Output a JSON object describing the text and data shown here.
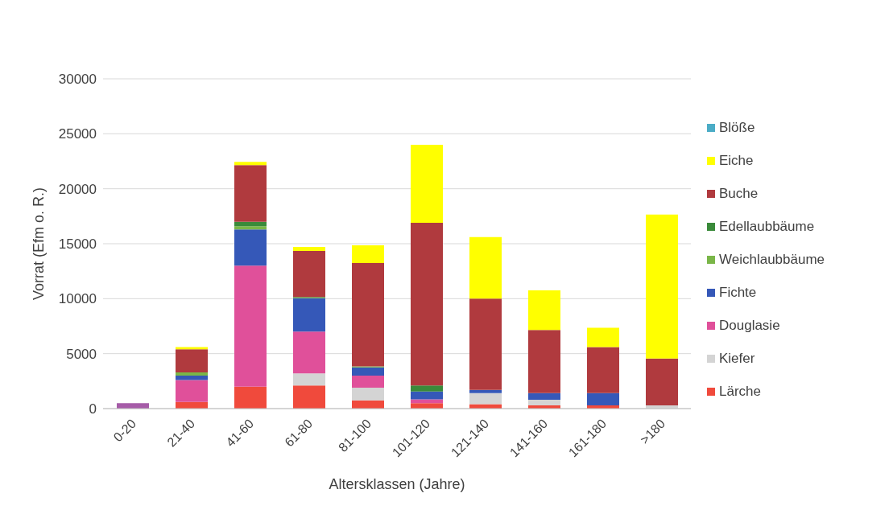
{
  "chart_data": {
    "type": "bar",
    "stacked": true,
    "xlabel": "Altersklassen (Jahre)",
    "ylabel": "Vorrat (Efm o. R.)",
    "categories": [
      "0-20",
      "21-40",
      "41-60",
      "61-80",
      "81-100",
      "101-120",
      "121-140",
      "141-160",
      "161-180",
      ">180"
    ],
    "series": [
      {
        "color": "#a65ca8",
        "values": [
          500,
          0,
          0,
          0,
          0,
          0,
          0,
          0,
          0,
          0
        ]
      },
      {
        "name": "Lärche",
        "color": "#f04a3c",
        "values": [
          0,
          600,
          2000,
          2100,
          750,
          500,
          400,
          300,
          300,
          0
        ]
      },
      {
        "name": "Kiefer",
        "color": "#d4d4d4",
        "values": [
          0,
          0,
          null,
          1100,
          1150,
          0,
          1000,
          500,
          0,
          300
        ]
      },
      {
        "name": "Douglasie",
        "color": "#e0509a",
        "values": [
          0,
          2000,
          11000,
          3800,
          1100,
          350,
          0,
          0,
          0,
          0
        ]
      },
      {
        "name": "Fichte",
        "color": "#3558b8",
        "values": [
          0,
          400,
          3300,
          3050,
          750,
          700,
          300,
          600,
          1100,
          0
        ]
      },
      {
        "name": "Weichlaubbäume",
        "color": "#7ab648",
        "values": [
          0,
          300,
          300,
          50,
          100,
          0,
          0,
          0,
          0,
          0
        ]
      },
      {
        "name": "Edellaubbäume",
        "color": "#3a8a3a",
        "values": [
          0,
          0,
          400,
          50,
          null,
          550,
          0,
          0,
          0,
          0
        ]
      },
      {
        "name": "Buche",
        "color": "#b03a3e",
        "values": [
          0,
          2100,
          5150,
          4200,
          9400,
          14800,
          8300,
          5750,
          4200,
          4250
        ]
      },
      {
        "name": "Eiche",
        "color": "#ffff00",
        "values": [
          0,
          200,
          300,
          350,
          1600,
          7100,
          5600,
          3600,
          1750,
          13100
        ]
      },
      {
        "name": "Blöße",
        "color": "#4bacc6",
        "values": [
          0,
          0,
          0,
          0,
          0,
          0,
          0,
          0,
          0,
          0
        ]
      }
    ],
    "ylim": [
      0,
      30000
    ],
    "yticks": [
      0,
      5000,
      10000,
      15000,
      20000,
      25000,
      30000
    ],
    "grid": "y",
    "legend": "right"
  }
}
